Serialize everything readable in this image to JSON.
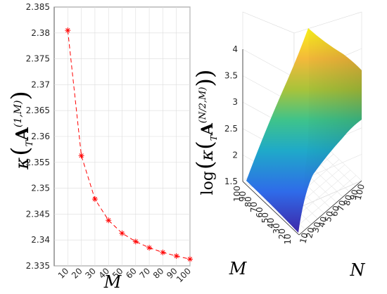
{
  "chart_data": [
    {
      "type": "line",
      "panel": "left",
      "title": "",
      "xlabel": "M",
      "ylabel": "κ( T A^(1,M) )",
      "ylabel_parts": {
        "func": "κ",
        "pre_sub": "T",
        "matrix": "A",
        "sup": "(1,M)"
      },
      "x": [
        10,
        20,
        30,
        40,
        50,
        60,
        70,
        80,
        90,
        100
      ],
      "series": [
        {
          "values": [
            2.3805,
            2.3563,
            2.3479,
            2.3438,
            2.3413,
            2.3397,
            2.3385,
            2.3376,
            2.3369,
            2.3363
          ],
          "color": "#ff0000",
          "line_style": "dashed",
          "marker": "asterisk"
        }
      ],
      "xticks": [
        "10",
        "20",
        "30",
        "40",
        "50",
        "60",
        "70",
        "80",
        "90",
        "100"
      ],
      "yticks": [
        "2.335",
        "2.34",
        "2.345",
        "2.35",
        "2.355",
        "2.36",
        "2.365",
        "2.37",
        "2.375",
        "2.38",
        "2.385"
      ],
      "xlim": [
        0,
        100
      ],
      "ylim": [
        2.335,
        2.385
      ],
      "grid": true
    },
    {
      "type": "surface",
      "panel": "right",
      "title": "",
      "xlabel": "M",
      "ylabel": "N",
      "zlabel": "log( κ( T A^(N/2,M) ) )",
      "zlabel_parts": {
        "func": "log",
        "inner": "κ",
        "pre_sub": "T",
        "matrix": "A",
        "sup": "(N/2,M)"
      },
      "m_ticks": [
        "10",
        "20",
        "30",
        "40",
        "50",
        "60",
        "70",
        "80",
        "90",
        "100"
      ],
      "n_ticks": [
        "10",
        "20",
        "30",
        "40",
        "50",
        "60",
        "70",
        "80",
        "90",
        "100"
      ],
      "z_ticks": [
        "1.5",
        "2",
        "2.5",
        "3",
        "3.5",
        "4"
      ],
      "zlim": [
        1.5,
        4
      ],
      "colormap": "parula",
      "grid": true
    }
  ]
}
